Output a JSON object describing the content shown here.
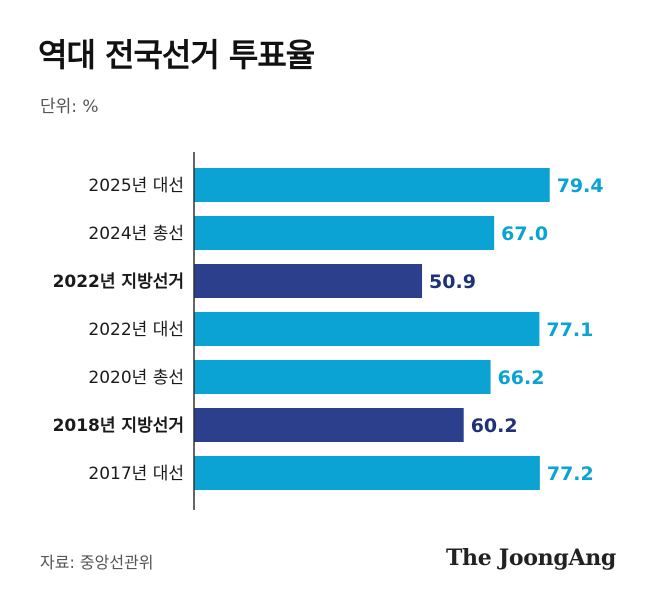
{
  "title": "역대 전국선거 투표율",
  "unit_label": "단위: %",
  "source": "자료: 중앙선관위",
  "logo": "The JoongAng",
  "colors": {
    "presidential_bar": "#0aa3d4",
    "local_bar": "#2b3f8c",
    "presidential_label": "#0aa3d4",
    "local_label": "#1f3278",
    "axis": "#333333"
  },
  "chart_data": {
    "type": "bar",
    "orientation": "horizontal",
    "title": "역대 전국선거 투표율",
    "unit": "%",
    "xlim": [
      0,
      100
    ],
    "categories": [
      "2025년 대선",
      "2024년 총선",
      "2022년 지방선거",
      "2022년 대선",
      "2020년 총선",
      "2018년 지방선거",
      "2017년 대선"
    ],
    "values": [
      79.4,
      67.0,
      50.9,
      77.1,
      66.2,
      60.2,
      77.2
    ],
    "value_labels": [
      "79.4",
      "67.0",
      "50.9",
      "77.1",
      "66.2",
      "60.2",
      "77.2"
    ],
    "highlighted": [
      false,
      false,
      true,
      false,
      false,
      true,
      false
    ]
  }
}
